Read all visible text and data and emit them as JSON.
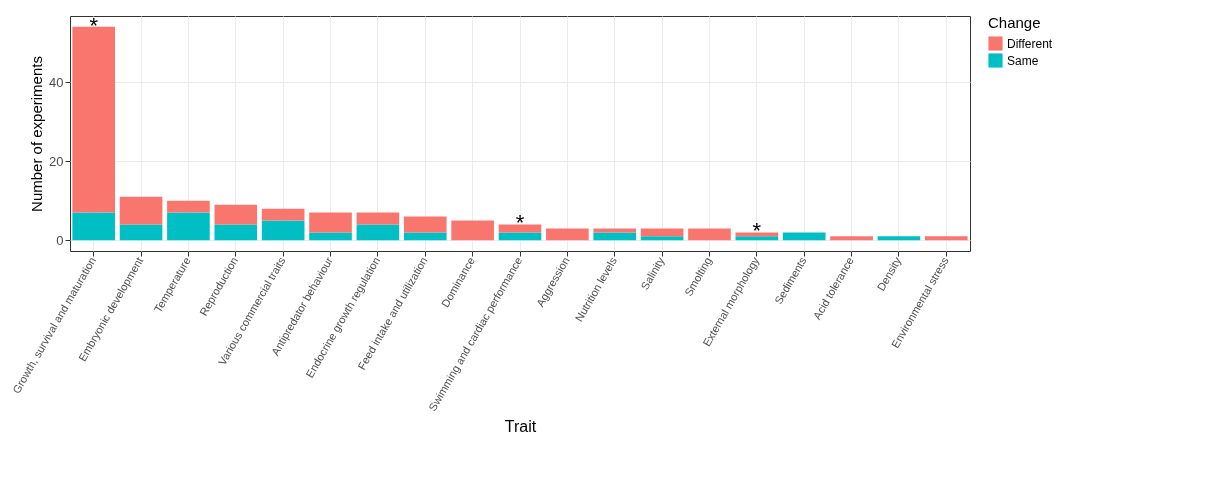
{
  "chart_data": {
    "type": "bar",
    "stacked": true,
    "xlabel": "Trait",
    "ylabel": "Number of experiments",
    "legend_title": "Change",
    "legend": "right",
    "grid": true,
    "categories": [
      "Growth, survival and maturation",
      "Embryonic development",
      "Temperature",
      "Reproduction",
      "Various commercial traits",
      "Antipredator behaviour",
      "Endocrine growth regulation",
      "Feed intake and utilization",
      "Dominance",
      "Swimming and cardiac performance",
      "Aggression",
      "Nutrition levels",
      "Salinity",
      "Smolting",
      "External morphology",
      "Sediments",
      "Acid tolerance",
      "Density",
      "Environmental stress"
    ],
    "series": [
      {
        "name": "Same",
        "color": "#00bfc4",
        "values": [
          7,
          4,
          7,
          4,
          5,
          2,
          4,
          2,
          0,
          2,
          0,
          2,
          1,
          0,
          1,
          2,
          0,
          1,
          0
        ]
      },
      {
        "name": "Different",
        "color": "#f8766d",
        "values": [
          47,
          7,
          3,
          5,
          3,
          5,
          3,
          4,
          5,
          2,
          3,
          1,
          2,
          3,
          1,
          0,
          1,
          0,
          1
        ]
      }
    ],
    "ylim": [
      -2.7,
      56.7
    ],
    "yticks": [
      0,
      20,
      40
    ],
    "annotations": [
      {
        "text": "*",
        "x": "Growth, survival and maturation",
        "y": 54
      },
      {
        "text": "*",
        "x": "Swimming and cardiac performance",
        "y": 4
      },
      {
        "text": "*",
        "x": "External morphology",
        "y": 2
      }
    ]
  }
}
